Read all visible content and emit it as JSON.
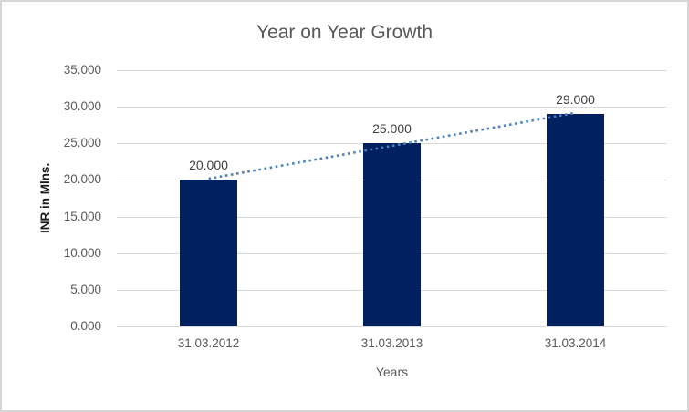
{
  "chart_data": {
    "type": "bar",
    "title": "Year on Year Growth",
    "categories": [
      "31.03.2012",
      "31.03.2013",
      "31.03.2014"
    ],
    "values": [
      20.0,
      25.0,
      29.0
    ],
    "data_labels": [
      "20.000",
      "25.000",
      "29.000"
    ],
    "xlabel": "Years",
    "ylabel": "INR in Mlns.",
    "ylim": [
      0,
      35
    ],
    "ytick_step": 5,
    "ytick_labels": [
      "0.000",
      "5.000",
      "10.000",
      "15.000",
      "20.000",
      "25.000",
      "30.000",
      "35.000"
    ],
    "grid": true,
    "legend": "none",
    "trendline": {
      "kind": "linear",
      "style": "dotted"
    }
  },
  "colors": {
    "bar": "#002060",
    "trendline": "#4e81bd",
    "gridline": "#d9d9d9",
    "axis_line": "#d9d9d9",
    "tick_text": "#595959",
    "title_text": "#595959",
    "data_label_text": "#404040",
    "y_axis_title_text": "#1a1a1a",
    "border": "#d6d6d6"
  }
}
